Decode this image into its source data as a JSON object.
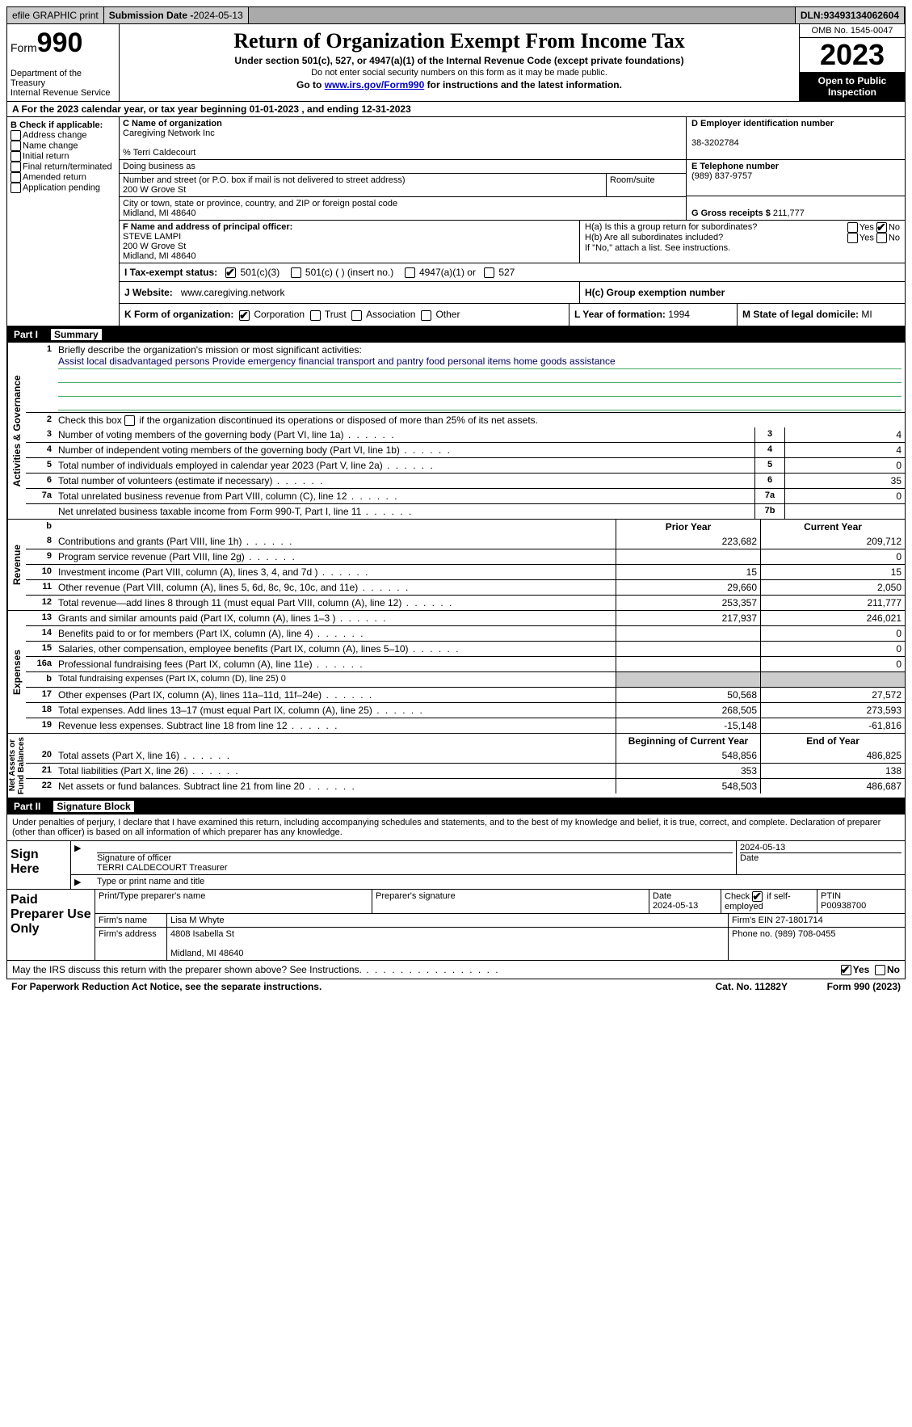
{
  "topbar": {
    "efile": "efile GRAPHIC print",
    "sub_label": "Submission Date - ",
    "sub_date": "2024-05-13",
    "dln_label": "DLN: ",
    "dln": "93493134062604"
  },
  "header": {
    "form_word": "Form",
    "form_num": "990",
    "dept": "Department of the Treasury\nInternal Revenue Service",
    "title": "Return of Organization Exempt From Income Tax",
    "sub1": "Under section 501(c), 527, or 4947(a)(1) of the Internal Revenue Code (except private foundations)",
    "sub2": "Do not enter social security numbers on this form as it may be made public.",
    "sub3_pre": "Go to ",
    "sub3_link": "www.irs.gov/Form990",
    "sub3_post": " for instructions and the latest information.",
    "omb": "OMB No. 1545-0047",
    "year": "2023",
    "open": "Open to Public Inspection"
  },
  "rowA": "A For the 2023 calendar year, or tax year beginning 01-01-2023   , and ending 12-31-2023",
  "boxB": {
    "label": "B Check if applicable:",
    "items": [
      "Address change",
      "Name change",
      "Initial return",
      "Final return/terminated",
      "Amended return",
      "Application pending"
    ]
  },
  "boxC": {
    "lbl_name": "C Name of organization",
    "name": "Caregiving Network Inc",
    "care_of": "% Terri Caldecourt",
    "dba_lbl": "Doing business as",
    "addr_lbl": "Number and street (or P.O. box if mail is not delivered to street address)",
    "addr": "200 W Grove St",
    "room_lbl": "Room/suite",
    "city_lbl": "City or town, state or province, country, and ZIP or foreign postal code",
    "city": "Midland, MI  48640"
  },
  "boxD": {
    "lbl": "D Employer identification number",
    "val": "38-3202784"
  },
  "boxE": {
    "lbl": "E Telephone number",
    "val": "(989) 837-9757"
  },
  "boxG": {
    "lbl": "G Gross receipts $ ",
    "val": "211,777"
  },
  "boxF": {
    "lbl": "F  Name and address of principal officer:",
    "name": "STEVE LAMPI",
    "addr1": "200 W Grove St",
    "addr2": "Midland, MI  48640"
  },
  "boxH": {
    "ha_lbl": "H(a)  Is this a group return for subordinates?",
    "hb_lbl": "H(b)  Are all subordinates included?",
    "hb_note": "If \"No,\" attach a list. See instructions.",
    "hc_lbl": "H(c)  Group exemption number",
    "yes": "Yes",
    "no": "No"
  },
  "taxI": {
    "lbl": "I   Tax-exempt status:",
    "o1": "501(c)(3)",
    "o2": "501(c) (  ) (insert no.)",
    "o3": "4947(a)(1) or",
    "o4": "527"
  },
  "boxJ": {
    "lbl": "J   Website:",
    "val": "www.caregiving.network"
  },
  "boxK": {
    "lbl": "K Form of organization:",
    "opts": [
      "Corporation",
      "Trust",
      "Association",
      "Other"
    ]
  },
  "boxL": {
    "lbl": "L Year of formation: ",
    "val": "1994"
  },
  "boxM": {
    "lbl": "M State of legal domicile: ",
    "val": "MI"
  },
  "part1": {
    "tag": "Part I",
    "title": "Summary"
  },
  "mission": {
    "q": "Briefly describe the organization's mission or most significant activities:",
    "text": "Assist local disadvantaged persons Provide emergency financial transport and pantry food personal items home goods assistance"
  },
  "line2": "Check this box      if the organization discontinued its operations or disposed of more than 25% of its net assets.",
  "gov_lines": [
    {
      "n": "3",
      "d": "Number of voting members of the governing body (Part VI, line 1a)",
      "b": "3",
      "v": "4"
    },
    {
      "n": "4",
      "d": "Number of independent voting members of the governing body (Part VI, line 1b)",
      "b": "4",
      "v": "4"
    },
    {
      "n": "5",
      "d": "Total number of individuals employed in calendar year 2023 (Part V, line 2a)",
      "b": "5",
      "v": "0"
    },
    {
      "n": "6",
      "d": "Total number of volunteers (estimate if necessary)",
      "b": "6",
      "v": "35"
    },
    {
      "n": "7a",
      "d": "Total unrelated business revenue from Part VIII, column (C), line 12",
      "b": "7a",
      "v": "0"
    },
    {
      "n": "",
      "d": "Net unrelated business taxable income from Form 990-T, Part I, line 11",
      "b": "7b",
      "v": ""
    }
  ],
  "cols": {
    "prior": "Prior Year",
    "curr": "Current Year",
    "begin": "Beginning of Current Year",
    "end": "End of Year"
  },
  "revenue": [
    {
      "n": "8",
      "d": "Contributions and grants (Part VIII, line 1h)",
      "p": "223,682",
      "c": "209,712"
    },
    {
      "n": "9",
      "d": "Program service revenue (Part VIII, line 2g)",
      "p": "",
      "c": "0"
    },
    {
      "n": "10",
      "d": "Investment income (Part VIII, column (A), lines 3, 4, and 7d )",
      "p": "15",
      "c": "15"
    },
    {
      "n": "11",
      "d": "Other revenue (Part VIII, column (A), lines 5, 6d, 8c, 9c, 10c, and 11e)",
      "p": "29,660",
      "c": "2,050"
    },
    {
      "n": "12",
      "d": "Total revenue—add lines 8 through 11 (must equal Part VIII, column (A), line 12)",
      "p": "253,357",
      "c": "211,777"
    }
  ],
  "expenses": [
    {
      "n": "13",
      "d": "Grants and similar amounts paid (Part IX, column (A), lines 1–3 )",
      "p": "217,937",
      "c": "246,021"
    },
    {
      "n": "14",
      "d": "Benefits paid to or for members (Part IX, column (A), line 4)",
      "p": "",
      "c": "0"
    },
    {
      "n": "15",
      "d": "Salaries, other compensation, employee benefits (Part IX, column (A), lines 5–10)",
      "p": "",
      "c": "0"
    },
    {
      "n": "16a",
      "d": "Professional fundraising fees (Part IX, column (A), line 11e)",
      "p": "",
      "c": "0"
    },
    {
      "n": "b",
      "d": "Total fundraising expenses (Part IX, column (D), line 25) 0",
      "p": "GREY",
      "c": "GREY",
      "small": true
    },
    {
      "n": "17",
      "d": "Other expenses (Part IX, column (A), lines 11a–11d, 11f–24e)",
      "p": "50,568",
      "c": "27,572"
    },
    {
      "n": "18",
      "d": "Total expenses. Add lines 13–17 (must equal Part IX, column (A), line 25)",
      "p": "268,505",
      "c": "273,593"
    },
    {
      "n": "19",
      "d": "Revenue less expenses. Subtract line 18 from line 12",
      "p": "-15,148",
      "c": "-61,816"
    }
  ],
  "netassets": [
    {
      "n": "20",
      "d": "Total assets (Part X, line 16)",
      "p": "548,856",
      "c": "486,825"
    },
    {
      "n": "21",
      "d": "Total liabilities (Part X, line 26)",
      "p": "353",
      "c": "138"
    },
    {
      "n": "22",
      "d": "Net assets or fund balances. Subtract line 21 from line 20",
      "p": "548,503",
      "c": "486,687"
    }
  ],
  "part2": {
    "tag": "Part II",
    "title": "Signature Block"
  },
  "sfirst": "",
  "perjury": "Under penalties of perjury, I declare that I have examined this return, including accompanying schedules and statements, and to the best of my knowledge and belief, it is true, correct, and complete. Declaration of preparer (other than officer) is based on all information of which preparer has any knowledge.",
  "sign": {
    "here": "Sign Here",
    "sig_lbl": "Signature of officer",
    "name": "TERRI CALDECOURT Treasurer",
    "type_lbl": "Type or print name and title",
    "date_lbl": "Date",
    "date": "2024-05-13"
  },
  "prep": {
    "title": "Paid Preparer Use Only",
    "h1": "Print/Type preparer's name",
    "h2": "Preparer's signature",
    "h3": "Date",
    "h4": "Check       if self-employed",
    "h5": "PTIN",
    "date": "2024-05-13",
    "ptin": "P00938700",
    "firm_lbl": "Firm's name",
    "firm": "Lisa M Whyte",
    "ein_lbl": "Firm's EIN",
    "ein": "27-1801714",
    "addr_lbl": "Firm's address",
    "addr1": "4808 Isabella St",
    "addr2": "Midland, MI  48640",
    "phone_lbl": "Phone no.",
    "phone": "(989) 708-0455"
  },
  "discuss": "May the IRS discuss this return with the preparer shown above? See Instructions.",
  "footer": {
    "left": "For Paperwork Reduction Act Notice, see the separate instructions.",
    "mid": "Cat. No. 11282Y",
    "right_a": "Form ",
    "right_b": "990",
    "right_c": " (2023)"
  }
}
